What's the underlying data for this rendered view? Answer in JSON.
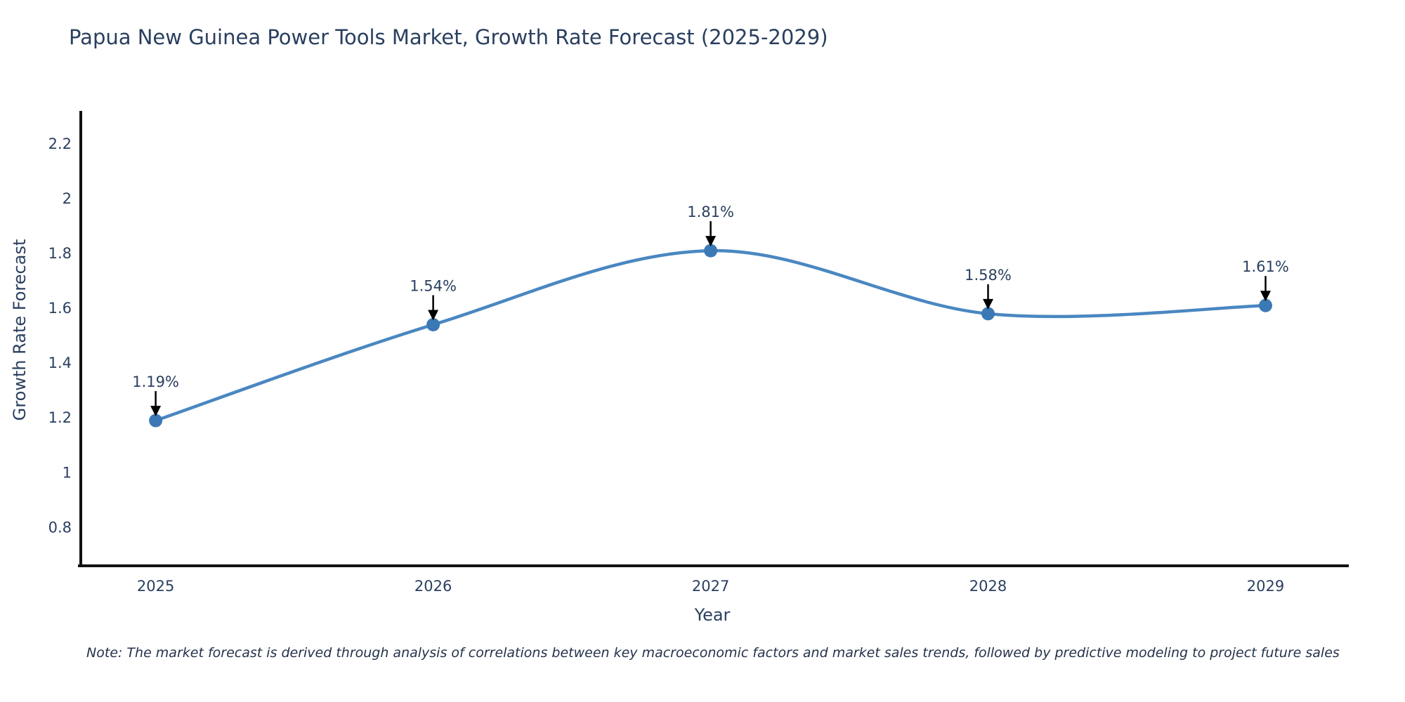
{
  "chart_data": {
    "type": "line",
    "title": "Papua New Guinea Power Tools Market, Growth Rate Forecast (2025-2029)",
    "xlabel": "Year",
    "ylabel": "Growth Rate Forecast",
    "x": [
      2025,
      2026,
      2027,
      2028,
      2029
    ],
    "series": [
      {
        "name": "Growth Rate Forecast",
        "values": [
          1.19,
          1.54,
          1.81,
          1.58,
          1.61
        ]
      }
    ],
    "point_labels": [
      "1.19%",
      "1.54%",
      "1.81%",
      "1.58%",
      "1.61%"
    ],
    "line_shape": "spline",
    "grid": false,
    "legend_position": "none",
    "xlim": [
      2024.73,
      2029.3
    ],
    "ylim": [
      0.66,
      2.32
    ],
    "yticks": [
      2.2,
      2.0,
      1.8,
      1.6,
      1.4,
      1.2,
      1.0,
      0.8
    ],
    "ytick_labels": [
      "2.2",
      "2",
      "1.8",
      "1.6",
      "1.4",
      "1.2",
      "1",
      "0.8"
    ],
    "xtick_labels": [
      "2025",
      "2026",
      "2027",
      "2028",
      "2029"
    ],
    "colors": {
      "line": "#4a87c1",
      "marker": "#3b79b5",
      "axis": "#111111",
      "tick_text": "#2a3f5f",
      "annotation_text": "#2a3f5f",
      "arrow": "#000000",
      "background": "#ffffff"
    }
  },
  "note": "Note: The market forecast is derived through analysis of correlations between key macroeconomic factors and market sales trends, followed by predictive modeling to project future sales"
}
